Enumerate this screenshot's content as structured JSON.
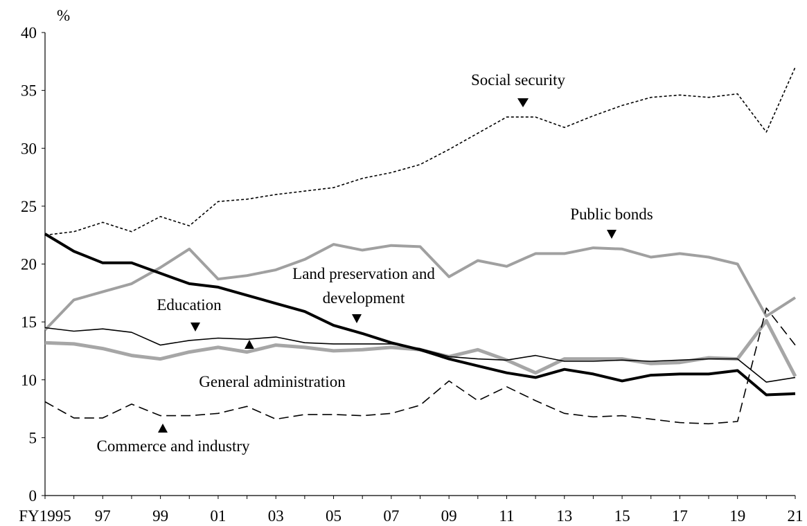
{
  "chart_data": {
    "type": "line",
    "y_label": "%",
    "categories": [
      "FY1995",
      null,
      "97",
      null,
      "99",
      null,
      "01",
      null,
      "03",
      null,
      "05",
      null,
      "07",
      null,
      "09",
      null,
      "11",
      null,
      "13",
      null,
      "15",
      null,
      "17",
      null,
      "19",
      null,
      "21"
    ],
    "ylim": [
      0,
      40
    ],
    "yticks": [
      0,
      5,
      10,
      15,
      20,
      25,
      30,
      35,
      40
    ],
    "series": [
      {
        "name": "Public bonds",
        "color": "#a0a0a0",
        "values": [
          14.3,
          16.9,
          17.6,
          18.3,
          19.7,
          21.3,
          18.7,
          19.0,
          19.5,
          20.4,
          21.7,
          21.2,
          21.6,
          21.5,
          18.9,
          20.3,
          19.8,
          20.9,
          20.9,
          21.4,
          21.3,
          20.6,
          20.9,
          20.6,
          20.0,
          15.5,
          17.1
        ]
      },
      {
        "name": "General administration",
        "color": "#a6a6a6",
        "values": [
          13.2,
          13.1,
          12.7,
          12.1,
          11.8,
          12.4,
          12.8,
          12.4,
          13.0,
          12.8,
          12.5,
          12.6,
          12.8,
          12.6,
          12.0,
          12.6,
          11.7,
          10.6,
          11.8,
          11.8,
          11.8,
          11.4,
          11.5,
          11.9,
          11.8,
          15.1,
          10.3
        ]
      },
      {
        "name": "Social security",
        "color": "#000000",
        "values": [
          22.5,
          22.8,
          23.6,
          22.8,
          24.1,
          23.3,
          25.4,
          25.6,
          26.0,
          26.3,
          26.6,
          27.4,
          27.9,
          28.6,
          29.9,
          31.3,
          32.7,
          32.7,
          31.8,
          32.8,
          33.7,
          34.4,
          34.6,
          34.4,
          34.7,
          31.4,
          37.0
        ]
      },
      {
        "name": "Land preservation and development",
        "color": "#000000",
        "values": [
          22.6,
          21.1,
          20.1,
          20.1,
          19.2,
          18.3,
          18.0,
          17.3,
          16.6,
          15.9,
          14.7,
          14.0,
          13.2,
          12.6,
          11.8,
          11.2,
          10.6,
          10.2,
          10.9,
          10.5,
          9.9,
          10.4,
          10.5,
          10.5,
          10.8,
          8.7,
          8.8
        ]
      },
      {
        "name": "Education",
        "color": "#000000",
        "values": [
          14.5,
          14.2,
          14.4,
          14.1,
          13.0,
          13.4,
          13.6,
          13.5,
          13.7,
          13.2,
          13.1,
          13.1,
          13.1,
          12.7,
          12.0,
          11.8,
          11.7,
          12.1,
          11.6,
          11.6,
          11.7,
          11.6,
          11.7,
          11.8,
          11.8,
          9.8,
          10.2
        ]
      },
      {
        "name": "Commerce and industry",
        "color": "#000000",
        "values": [
          8.1,
          6.7,
          6.7,
          7.9,
          6.9,
          6.9,
          7.1,
          7.7,
          6.6,
          7.0,
          7.0,
          6.9,
          7.1,
          7.8,
          9.9,
          8.2,
          9.4,
          8.2,
          7.1,
          6.8,
          6.9,
          6.6,
          6.3,
          6.2,
          6.4,
          16.2,
          13.0
        ]
      }
    ]
  }
}
